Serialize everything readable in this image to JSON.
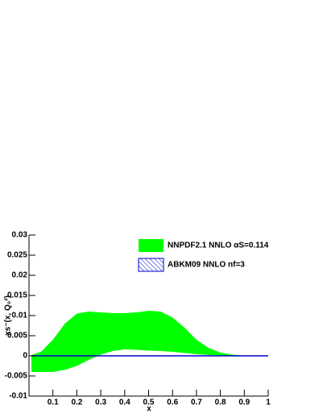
{
  "chart_data": {
    "type": "band",
    "x_label": "x",
    "y_label": "xs⁻(x, Q₀²)",
    "x": [
      0.01,
      0.05,
      0.1,
      0.15,
      0.2,
      0.25,
      0.3,
      0.35,
      0.4,
      0.45,
      0.5,
      0.55,
      0.6,
      0.65,
      0.7,
      0.75,
      0.8,
      0.85,
      0.9,
      0.95,
      1.0
    ],
    "series": [
      {
        "name": "NNPDF2.1 NNLO αS=0.114",
        "color": "#00ff00",
        "upper": [
          0.0002,
          0.001,
          0.004,
          0.008,
          0.0105,
          0.011,
          0.0108,
          0.0106,
          0.0106,
          0.0108,
          0.0112,
          0.011,
          0.0095,
          0.007,
          0.004,
          0.002,
          0.0008,
          0.0003,
          0.0001,
          0,
          0
        ],
        "lower": [
          -0.004,
          -0.004,
          -0.004,
          -0.0035,
          -0.0025,
          -0.001,
          0.0003,
          0.0012,
          0.0016,
          0.0015,
          0.0013,
          0.0012,
          0.001,
          0.0007,
          0.0004,
          0.0002,
          0.0001,
          0,
          0,
          0,
          0
        ]
      },
      {
        "name": "ABKM09 NNLO nf=3",
        "color": "#0000cc",
        "values": [
          0,
          0,
          0,
          0,
          0,
          0,
          0,
          0,
          0,
          0,
          0,
          0,
          0,
          0,
          0,
          0,
          0,
          0,
          0,
          0,
          0
        ]
      }
    ],
    "xlim": [
      0,
      1
    ],
    "ylim": [
      -0.01,
      0.03
    ],
    "xticks": [
      0.1,
      0.2,
      0.3,
      0.4,
      0.5,
      0.6,
      0.7,
      0.8,
      0.9,
      1
    ],
    "yticks": [
      -0.01,
      -0.005,
      0,
      0.005,
      0.01,
      0.015,
      0.02,
      0.025,
      0.03
    ]
  }
}
